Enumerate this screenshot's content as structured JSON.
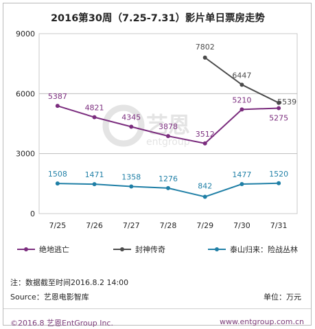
{
  "chart_data": {
    "type": "line",
    "title": "2016第30周（7.25-7.31）影片单日票房走势",
    "categories": [
      "7/25",
      "7/26",
      "7/27",
      "7/28",
      "7/29",
      "7/30",
      "7/31"
    ],
    "yticks": [
      "0",
      "3000",
      "6000",
      "9000"
    ],
    "ylim": [
      0,
      9000
    ],
    "grid": "horizontal",
    "legend_position": "bottom",
    "series": [
      {
        "name": "绝地逃亡",
        "color": "#7b2d7e",
        "values": [
          5387,
          4821,
          4345,
          3878,
          3512,
          5210,
          5275
        ],
        "labels": [
          "5387",
          "4821",
          "4345",
          "3878",
          "3512",
          "5210",
          "5275"
        ]
      },
      {
        "name": "封神传奇",
        "color": "#4a4a4a",
        "values": [
          null,
          null,
          null,
          null,
          7802,
          6447,
          5539
        ],
        "labels": [
          "",
          "",
          "",
          "",
          "7802",
          "6447",
          "5539"
        ]
      },
      {
        "name": "泰山归来：险战丛林",
        "color": "#1f7fa6",
        "values": [
          1508,
          1471,
          1358,
          1276,
          842,
          1477,
          1520
        ],
        "labels": [
          "1508",
          "1471",
          "1358",
          "1276",
          "842",
          "1477",
          "1520"
        ]
      }
    ]
  },
  "watermark": {
    "text": "艺恩",
    "subtext": "entgroup",
    "color": "#e4e4e4"
  },
  "notes": {
    "data_cutoff": "注：数据截至时间2016.8.2  14:00",
    "source": "Source：艺恩电影智库",
    "unit": "单位：万元"
  },
  "footer": {
    "copyright": "©2016.8 艺恩EntGroup Inc.",
    "website": "www.entgroup.com.cn"
  }
}
